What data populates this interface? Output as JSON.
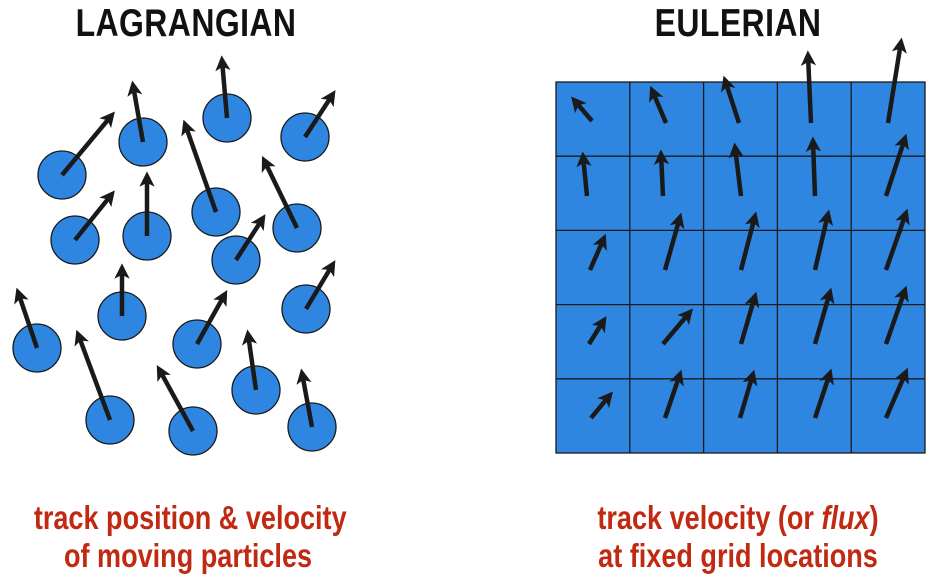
{
  "left_panel": {
    "title": "LAGRANGIAN",
    "caption_line1": "track position & velocity",
    "caption_line2": "of moving particles"
  },
  "right_panel": {
    "title": "EULERIAN",
    "caption_prefix": "track velocity (or ",
    "caption_flux": "flux",
    "caption_suffix": ")",
    "caption_line2": "at fixed grid locations"
  },
  "colors": {
    "particle_fill": "#2f86e0",
    "grid_fill": "#2f86e0",
    "outline": "#1a1a1a",
    "arrow": "#1a1a1a",
    "caption_text": "#c02a12",
    "title_text": "#111111"
  },
  "grid": {
    "rows": 5,
    "cols": 5
  }
}
